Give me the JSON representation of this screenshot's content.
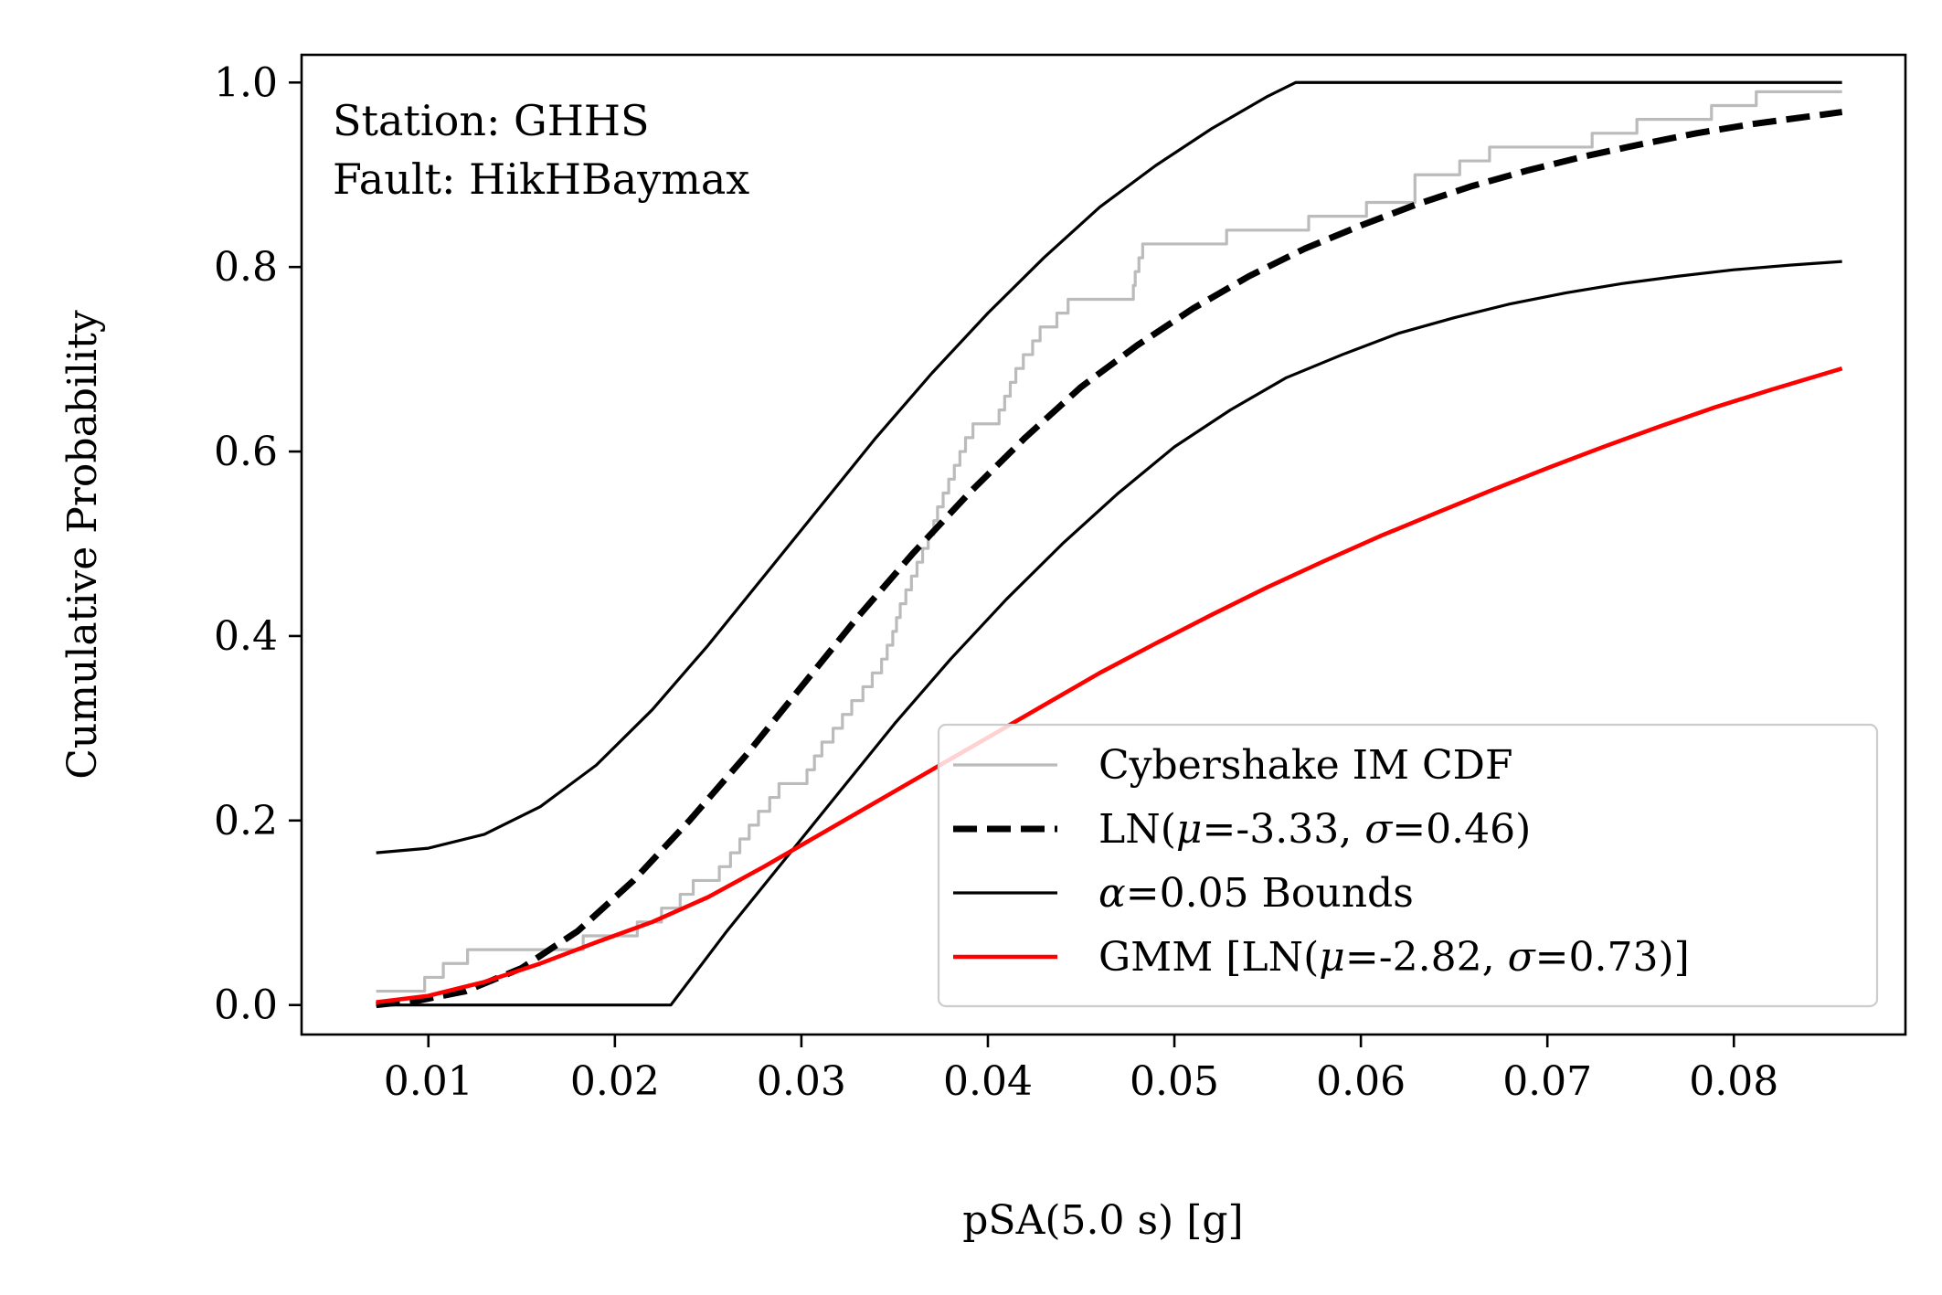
{
  "chart_data": {
    "type": "line",
    "title": "",
    "xlabel": "pSA(5.0 s) [g]",
    "ylabel": "Cumulative Probability",
    "xlim": [
      0.0032,
      0.0892
    ],
    "ylim": [
      -0.032,
      1.03
    ],
    "grid": false,
    "xticks": [
      0.01,
      0.02,
      0.03,
      0.04,
      0.05,
      0.06,
      0.07,
      0.08
    ],
    "xtick_labels": [
      "0.01",
      "0.02",
      "0.03",
      "0.04",
      "0.05",
      "0.06",
      "0.07",
      "0.08"
    ],
    "yticks": [
      0.0,
      0.2,
      0.4,
      0.6,
      0.8,
      1.0
    ],
    "ytick_labels": [
      "0.0",
      "0.2",
      "0.4",
      "0.6",
      "0.8",
      "1.0"
    ],
    "annotations": [
      "Station: GHHS",
      "Fault: HikHBaymax"
    ],
    "legend_position": "lower-right",
    "series": [
      {
        "name": "Cybershake IM CDF",
        "style": "step",
        "color": "#bbbbbb",
        "x": [
          0.0072,
          0.0098,
          0.0108,
          0.0121,
          0.0152,
          0.0183,
          0.0212,
          0.0225,
          0.0235,
          0.0242,
          0.0248,
          0.0256,
          0.0262,
          0.0267,
          0.0272,
          0.0277,
          0.0283,
          0.0288,
          0.0297,
          0.0303,
          0.0307,
          0.0311,
          0.0317,
          0.0322,
          0.0327,
          0.0333,
          0.0338,
          0.0343,
          0.0346,
          0.0349,
          0.0351,
          0.0353,
          0.0356,
          0.0359,
          0.0362,
          0.0365,
          0.0368,
          0.0371,
          0.0373,
          0.0376,
          0.0379,
          0.0382,
          0.0385,
          0.0388,
          0.0392,
          0.0395,
          0.0398,
          0.0402,
          0.0406,
          0.0409,
          0.0412,
          0.0415,
          0.0419,
          0.0424,
          0.0428,
          0.0433,
          0.0437,
          0.0443,
          0.0448,
          0.0455,
          0.0463,
          0.0472,
          0.0478,
          0.0479,
          0.0481,
          0.0483,
          0.0488,
          0.0502,
          0.0528,
          0.0556,
          0.0572,
          0.0603,
          0.0629,
          0.0653,
          0.0669,
          0.0683,
          0.0724,
          0.0748,
          0.0774,
          0.0788,
          0.0812,
          0.0858
        ],
        "y": [
          0.015,
          0.03,
          0.045,
          0.06,
          0.06,
          0.075,
          0.09,
          0.105,
          0.12,
          0.135,
          0.135,
          0.15,
          0.165,
          0.18,
          0.195,
          0.21,
          0.225,
          0.24,
          0.24,
          0.255,
          0.27,
          0.285,
          0.3,
          0.315,
          0.33,
          0.345,
          0.36,
          0.375,
          0.39,
          0.405,
          0.42,
          0.435,
          0.45,
          0.465,
          0.48,
          0.495,
          0.51,
          0.525,
          0.54,
          0.555,
          0.57,
          0.585,
          0.6,
          0.615,
          0.63,
          0.63,
          0.63,
          0.63,
          0.645,
          0.66,
          0.675,
          0.69,
          0.705,
          0.72,
          0.735,
          0.735,
          0.75,
          0.765,
          0.765,
          0.765,
          0.765,
          0.765,
          0.78,
          0.795,
          0.81,
          0.825,
          0.825,
          0.825,
          0.84,
          0.84,
          0.855,
          0.87,
          0.9,
          0.915,
          0.93,
          0.93,
          0.945,
          0.96,
          0.96,
          0.975,
          0.99,
          0.99
        ]
      },
      {
        "name": "LN(μ=-3.33, σ=0.46)",
        "legend_parts": [
          [
            "LN(",
            false
          ],
          [
            "μ",
            true
          ],
          [
            "=-3.33, ",
            false
          ],
          [
            "σ",
            true
          ],
          [
            "=0.46)",
            false
          ]
        ],
        "style": "dashed",
        "color": "#000000",
        "x": [
          0.0072,
          0.0095,
          0.012,
          0.015,
          0.018,
          0.021,
          0.024,
          0.027,
          0.03,
          0.033,
          0.036,
          0.039,
          0.042,
          0.045,
          0.048,
          0.051,
          0.054,
          0.057,
          0.06,
          0.063,
          0.066,
          0.069,
          0.072,
          0.075,
          0.078,
          0.081,
          0.0858
        ],
        "y": [
          0.0,
          0.005,
          0.015,
          0.04,
          0.08,
          0.135,
          0.2,
          0.27,
          0.345,
          0.42,
          0.49,
          0.555,
          0.615,
          0.67,
          0.715,
          0.755,
          0.79,
          0.82,
          0.845,
          0.868,
          0.888,
          0.905,
          0.92,
          0.933,
          0.945,
          0.955,
          0.968
        ]
      },
      {
        "name": "α=0.05 Bounds",
        "legend_parts": [
          [
            "α",
            true
          ],
          [
            "=0.05 Bounds",
            false
          ]
        ],
        "style": "solid",
        "color": "#000000",
        "x": [
          0.0072,
          0.01,
          0.013,
          0.016,
          0.019,
          0.022,
          0.025,
          0.028,
          0.031,
          0.034,
          0.037,
          0.04,
          0.043,
          0.046,
          0.049,
          0.052,
          0.055,
          0.0565,
          0.06,
          0.07,
          0.08,
          0.0858
        ],
        "y": [
          0.165,
          0.17,
          0.185,
          0.215,
          0.26,
          0.32,
          0.39,
          0.465,
          0.54,
          0.615,
          0.685,
          0.75,
          0.81,
          0.865,
          0.91,
          0.95,
          0.985,
          1.0,
          1.0,
          1.0,
          1.0,
          1.0
        ]
      },
      {
        "name": "",
        "style": "solid",
        "color": "#000000",
        "x": [
          0.0072,
          0.01,
          0.015,
          0.02,
          0.023,
          0.026,
          0.029,
          0.032,
          0.035,
          0.038,
          0.041,
          0.044,
          0.047,
          0.05,
          0.053,
          0.056,
          0.059,
          0.062,
          0.065,
          0.068,
          0.071,
          0.074,
          0.077,
          0.08,
          0.083,
          0.0858
        ],
        "y": [
          0.0,
          0.0,
          0.0,
          0.0,
          0.0,
          0.08,
          0.155,
          0.23,
          0.305,
          0.375,
          0.44,
          0.5,
          0.555,
          0.605,
          0.645,
          0.68,
          0.705,
          0.728,
          0.745,
          0.76,
          0.772,
          0.782,
          0.79,
          0.797,
          0.802,
          0.806
        ]
      },
      {
        "name": "GMM [LN(μ=-2.82, σ=0.73)]",
        "legend_parts": [
          [
            "GMM [LN(",
            false
          ],
          [
            "μ",
            true
          ],
          [
            "=-2.82, ",
            false
          ],
          [
            "σ",
            true
          ],
          [
            "=0.73)]",
            false
          ]
        ],
        "style": "solid",
        "color": "#ff0000",
        "x": [
          0.0072,
          0.01,
          0.013,
          0.016,
          0.019,
          0.022,
          0.025,
          0.028,
          0.031,
          0.034,
          0.037,
          0.04,
          0.043,
          0.046,
          0.049,
          0.052,
          0.055,
          0.058,
          0.061,
          0.064,
          0.067,
          0.07,
          0.073,
          0.076,
          0.079,
          0.082,
          0.0858
        ],
        "y": [
          0.003,
          0.01,
          0.025,
          0.045,
          0.068,
          0.09,
          0.117,
          0.15,
          0.185,
          0.22,
          0.255,
          0.29,
          0.325,
          0.36,
          0.392,
          0.423,
          0.453,
          0.481,
          0.508,
          0.533,
          0.558,
          0.582,
          0.605,
          0.627,
          0.648,
          0.667,
          0.69
        ]
      }
    ]
  }
}
